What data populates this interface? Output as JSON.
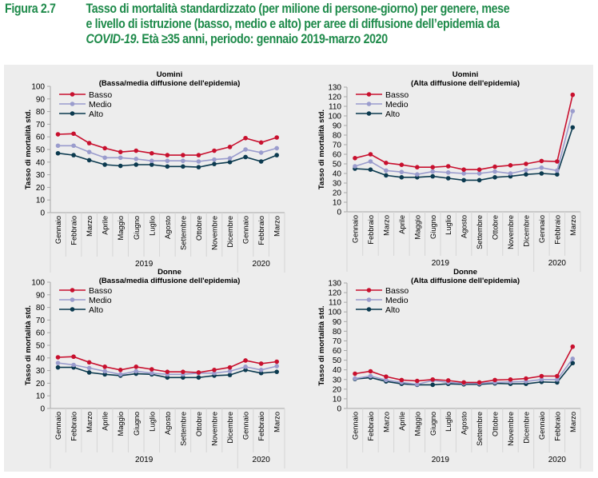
{
  "figure": {
    "number": "Figura 2.7",
    "title_line1": "Tasso di mortalità standardizzato (per milione di persone-giorno) per genere, mese",
    "title_line2": "e livello di istruzione (basso, medio e alto) per aree di diffusione dell’epidemia da",
    "title_line3_italic": "COVID-19",
    "title_line3_rest": ". Età ≥35 anni, periodo: gennaio 2019-marzo 2020"
  },
  "colors": {
    "basso": "#c8102e",
    "medio": "#9a9ccd",
    "alto": "#0b3a4f",
    "background": "#ededed",
    "title": "#1e8a4a"
  },
  "chart_data": [
    {
      "type": "line",
      "title": "Uomini",
      "subtitle": "(Bassa/media diffusione dell'epidemia)",
      "ylabel": "Tasso di mortalità std.",
      "xlabel": "",
      "ylim": [
        0,
        100
      ],
      "yticks": [
        0,
        10,
        20,
        30,
        40,
        50,
        60,
        70,
        80,
        90,
        100
      ],
      "categories": [
        "Gennaio",
        "Febbraio",
        "Marzo",
        "Aprile",
        "Maggio",
        "Giugno",
        "Luglio",
        "Agosto",
        "Settembre",
        "Ottobre",
        "Novembre",
        "Dicembre",
        "Gennaio",
        "Febbraio",
        "Marzo"
      ],
      "year_groups": [
        {
          "label": "2019",
          "count": 12
        },
        {
          "label": "2020",
          "count": 3
        }
      ],
      "legend_position": "top-left",
      "series": [
        {
          "name": "Basso",
          "values": [
            62,
            62.5,
            55,
            51,
            48,
            49,
            47,
            45.5,
            45.5,
            45.5,
            49,
            52,
            59,
            55.5,
            59.5
          ]
        },
        {
          "name": "Medio",
          "values": [
            53,
            53,
            48,
            43.5,
            43.5,
            42.5,
            41,
            41,
            41,
            40.5,
            42,
            43,
            50,
            47.5,
            51
          ]
        },
        {
          "name": "Alto",
          "values": [
            47,
            45.5,
            41.5,
            38,
            37,
            38,
            38,
            36.5,
            36.5,
            36,
            38.5,
            40,
            44,
            40.5,
            45.5
          ]
        }
      ]
    },
    {
      "type": "line",
      "title": "Uomini",
      "subtitle": "(Alta diffusione dell'epidemia)",
      "ylabel": "Tasso di mortalità std.",
      "xlabel": "",
      "ylim": [
        0,
        130
      ],
      "yticks": [
        0,
        10,
        20,
        30,
        40,
        50,
        60,
        70,
        80,
        90,
        100,
        110,
        120,
        130
      ],
      "categories": [
        "Gennaio",
        "Febbraio",
        "Marzo",
        "Aprile",
        "Maggio",
        "Giugno",
        "Luglio",
        "Agosto",
        "Settembre",
        "Ottobre",
        "Novembre",
        "Dicembre",
        "Gennaio",
        "Febbraio",
        "Marzo"
      ],
      "year_groups": [
        {
          "label": "2019",
          "count": 12
        },
        {
          "label": "2020",
          "count": 3
        }
      ],
      "legend_position": "top-left",
      "series": [
        {
          "name": "Basso",
          "values": [
            56,
            60,
            51,
            49,
            46.5,
            46.5,
            47.5,
            44,
            44,
            47,
            48.5,
            50,
            53,
            52.5,
            122
          ]
        },
        {
          "name": "Medio",
          "values": [
            47.5,
            52.5,
            43,
            41.5,
            39,
            42,
            41,
            40,
            40,
            42,
            40,
            43.5,
            46,
            43,
            105
          ]
        },
        {
          "name": "Alto",
          "values": [
            45,
            44,
            38,
            36,
            36,
            37,
            35,
            33,
            33,
            36,
            37,
            39,
            40,
            39,
            88
          ]
        }
      ]
    },
    {
      "type": "line",
      "title": "Donne",
      "subtitle": "(Bassa/media diffusione dell'epidemia)",
      "ylabel": "Tasso di mortalità std.",
      "xlabel": "",
      "ylim": [
        0,
        100
      ],
      "yticks": [
        0,
        10,
        20,
        30,
        40,
        50,
        60,
        70,
        80,
        90,
        100
      ],
      "categories": [
        "Gennaio",
        "Febbraio",
        "Marzo",
        "Aprile",
        "Maggio",
        "Giugno",
        "Luglio",
        "Agosto",
        "Settembre",
        "Ottobre",
        "Novembre",
        "Dicembre",
        "Gennaio",
        "Febbraio",
        "Marzo"
      ],
      "year_groups": [
        {
          "label": "2019",
          "count": 12
        },
        {
          "label": "2020",
          "count": 3
        }
      ],
      "legend_position": "top-left",
      "series": [
        {
          "name": "Basso",
          "values": [
            40.5,
            41,
            36.5,
            33,
            30.5,
            33,
            31,
            29,
            29,
            28.5,
            30.5,
            32.5,
            38,
            35.5,
            37
          ]
        },
        {
          "name": "Medio",
          "values": [
            36,
            34.5,
            32,
            29.5,
            27,
            29.5,
            28,
            27,
            27,
            28,
            28,
            29.5,
            33,
            30.5,
            33.5
          ]
        },
        {
          "name": "Alto",
          "values": [
            32.5,
            32.5,
            28.5,
            27,
            26,
            27.5,
            27,
            24.5,
            24.5,
            24.5,
            26,
            26.5,
            30.5,
            28,
            29
          ]
        }
      ]
    },
    {
      "type": "line",
      "title": "Donne",
      "subtitle": "(Alta diffusione dell'epidemia)",
      "ylabel": "Tasso di mortalità std.",
      "xlabel": "",
      "ylim": [
        0,
        130
      ],
      "yticks": [
        0,
        10,
        20,
        30,
        40,
        50,
        60,
        70,
        80,
        90,
        100,
        110,
        120,
        130
      ],
      "categories": [
        "Gennaio",
        "Febbraio",
        "Marzo",
        "Aprile",
        "Maggio",
        "Giugno",
        "Luglio",
        "Agosto",
        "Settembre",
        "Ottobre",
        "Novembre",
        "Dicembre",
        "Gennaio",
        "Febbraio",
        "Marzo"
      ],
      "year_groups": [
        {
          "label": "2019",
          "count": 12
        },
        {
          "label": "2020",
          "count": 3
        }
      ],
      "legend_position": "top-left",
      "series": [
        {
          "name": "Basso",
          "values": [
            36,
            38.5,
            33,
            29.5,
            28.5,
            30,
            29,
            27,
            27,
            29.5,
            30,
            31,
            33.5,
            33.5,
            64
          ]
        },
        {
          "name": "Medio",
          "values": [
            31,
            33.5,
            29.5,
            27,
            25,
            29,
            27,
            26,
            26,
            27,
            27.5,
            28,
            30,
            30,
            51.5
          ]
        },
        {
          "name": "Alto",
          "values": [
            30.5,
            32,
            28,
            25.5,
            24.5,
            24.5,
            25.5,
            25,
            25,
            26,
            25.5,
            25.5,
            27.5,
            27,
            47
          ]
        }
      ]
    }
  ]
}
